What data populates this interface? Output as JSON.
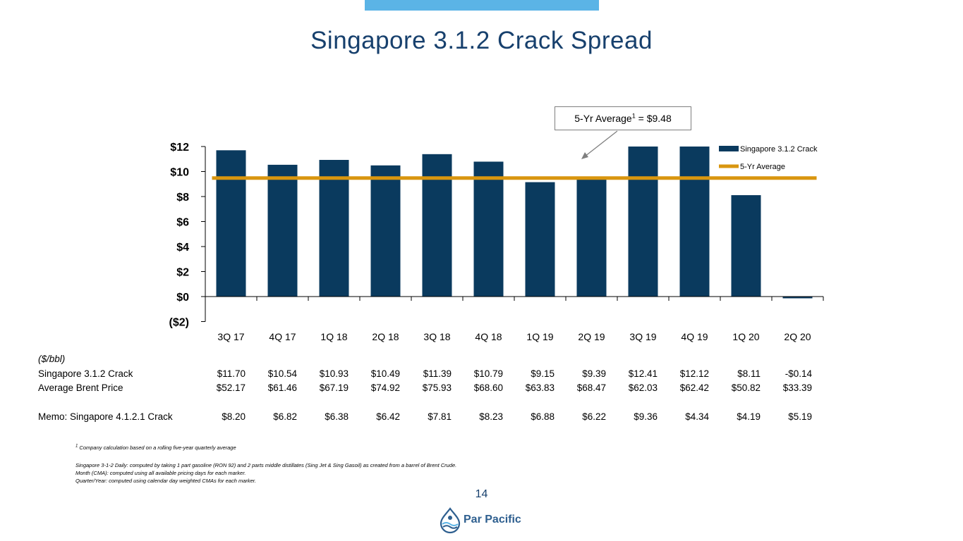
{
  "title": "Singapore 3.1.2 Crack Spread",
  "page_number": "14",
  "logo": {
    "text": "Par Pacific",
    "icon": "par-pacific-drop-logo-icon"
  },
  "colors": {
    "bar": "#0a3a5e",
    "average_line": "#d9960f",
    "accent_bar": "#5bb4e6",
    "title": "#17406d",
    "logo_text": "#2e5f8f"
  },
  "callout": {
    "text_before": "5-Yr Average",
    "superscript": "1",
    "text_after": " = $9.48"
  },
  "chart_data": {
    "type": "bar",
    "title": "",
    "xlabel": "",
    "ylabel": "",
    "ylim": [
      -2,
      12
    ],
    "yticks": [
      "$12",
      "$10",
      "$8",
      "$6",
      "$4",
      "$2",
      "$0",
      "($2)"
    ],
    "ytick_values": [
      12,
      10,
      8,
      6,
      4,
      2,
      0,
      -2
    ],
    "categories": [
      "3Q 17",
      "4Q 17",
      "1Q 18",
      "2Q 18",
      "3Q 18",
      "4Q 18",
      "1Q 19",
      "2Q 19",
      "3Q 19",
      "4Q 19",
      "1Q 20",
      "2Q 20"
    ],
    "series": [
      {
        "name": "Singapore 3.1.2 Crack",
        "values": [
          11.7,
          10.54,
          10.93,
          10.49,
          11.39,
          10.79,
          9.15,
          9.39,
          12.41,
          12.12,
          8.11,
          -0.14
        ]
      },
      {
        "name": "5-Yr Average",
        "type": "line",
        "values": [
          9.48,
          9.48,
          9.48,
          9.48,
          9.48,
          9.48,
          9.48,
          9.48,
          9.48,
          9.48,
          9.48,
          9.48
        ]
      }
    ],
    "legend_position": "top-right",
    "grid": false
  },
  "table": {
    "unit": "($/bbl)",
    "rows": [
      {
        "label": "Singapore 3.1.2 Crack",
        "values": [
          "$11.70",
          "$10.54",
          "$10.93",
          "$10.49",
          "$11.39",
          "$10.79",
          "$9.15",
          "$9.39",
          "$12.41",
          "$12.12",
          "$8.11",
          "-$0.14"
        ]
      },
      {
        "label": "Average Brent Price",
        "values": [
          "$52.17",
          "$61.46",
          "$67.19",
          "$74.92",
          "$75.93",
          "$68.60",
          "$63.83",
          "$68.47",
          "$62.03",
          "$62.42",
          "$50.82",
          "$33.39"
        ]
      },
      {
        "label": "Memo: Singapore 4.1.2.1 Crack",
        "values": [
          "$8.20",
          "$6.82",
          "$6.38",
          "$6.42",
          "$7.81",
          "$8.23",
          "$6.88",
          "$6.22",
          "$9.36",
          "$4.34",
          "$4.19",
          "$5.19"
        ]
      }
    ]
  },
  "footnotes": {
    "note1_marker": "1",
    "note1": " Company calculation based on a rolling five-year quarterly average",
    "lines": [
      "Singapore 3-1-2 Daily: computed by taking 1 part gasoline (RON 92) and 2 parts middle distillates (Sing Jet & Sing Gasoil) as created from a barrel of Brent Crude.",
      "Month (CMA): computed using all available pricing days for each marker.",
      "Quarter/Year: computed using calendar day weighted CMAs for each marker."
    ]
  }
}
